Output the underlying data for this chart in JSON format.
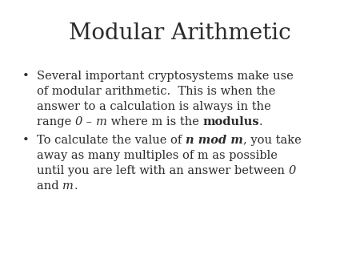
{
  "title": "Modular Arithmetic",
  "background_color": "#ffffff",
  "text_color": "#2b2b2b",
  "title_fontsize": 20,
  "body_fontsize": 10.5,
  "font_family": "DejaVu Serif",
  "bullet_char": "•",
  "lines": {
    "bullet1_line1": "Several important cryptosystems make use",
    "bullet1_line2": "of modular arithmetic.  This is when the",
    "bullet1_line3": "answer to a calculation is always in the",
    "bullet1_line4_pre": "range ",
    "bullet1_line4_0": "0",
    "bullet1_line4_dash": " – ",
    "bullet1_line4_m": "m",
    "bullet1_line4_mid": " where m is the ",
    "bullet1_line4_mod": "modulus",
    "bullet1_line4_dot": ".",
    "bullet2_line1_pre": "To calculate the value of ",
    "bullet2_line1_nmodm": "n mod m",
    "bullet2_line1_post": ", you take",
    "bullet2_line2": "away as many multiples of m as possible",
    "bullet2_line3_pre": "until you are left with an answer between ",
    "bullet2_line3_0": "0",
    "bullet2_line4_pre": "and ",
    "bullet2_line4_m": "m",
    "bullet2_line4_dot": "."
  }
}
